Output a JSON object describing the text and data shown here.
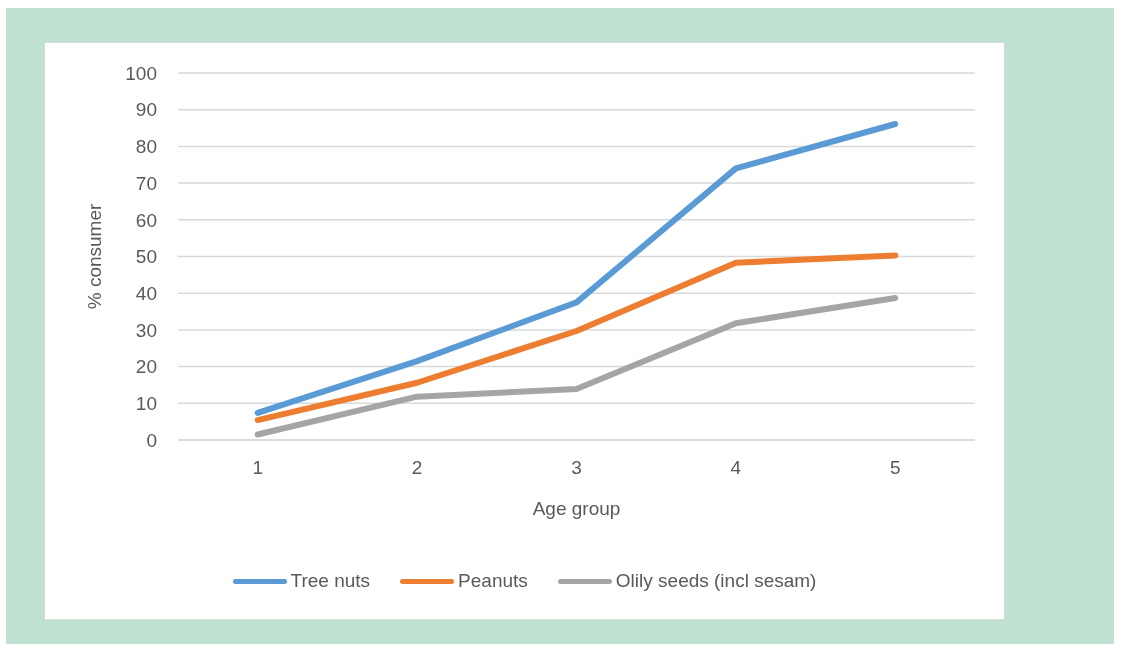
{
  "chart_data": {
    "type": "line",
    "xlabel": "Age group",
    "ylabel": "% consumer",
    "categories": [
      "1",
      "2",
      "3",
      "4",
      "5"
    ],
    "series": [
      {
        "name": "Tree nuts",
        "color": "#5b9bd5",
        "values": [
          7.4,
          21.5,
          37.5,
          74,
          86.1
        ]
      },
      {
        "name": "Peanuts",
        "color": "#ed7d31",
        "values": [
          5.4,
          15.6,
          29.7,
          48.3,
          50.3
        ]
      },
      {
        "name": "Olily seeds (incl sesam)",
        "color": "#a5a5a5",
        "values": [
          1.5,
          11.8,
          13.9,
          31.8,
          38.7
        ]
      }
    ],
    "ylim": [
      0,
      100
    ],
    "yticks": [
      0,
      10,
      20,
      30,
      40,
      50,
      60,
      70,
      80,
      90,
      100
    ],
    "grid": "y",
    "legend": "bottom",
    "marker": "none",
    "line_style": "solid"
  }
}
